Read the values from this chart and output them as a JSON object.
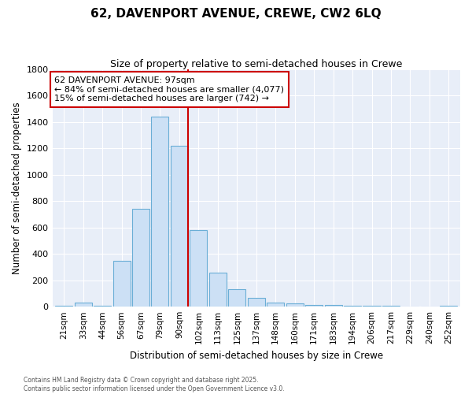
{
  "title": "62, DAVENPORT AVENUE, CREWE, CW2 6LQ",
  "subtitle": "Size of property relative to semi-detached houses in Crewe",
  "xlabel": "Distribution of semi-detached houses by size in Crewe",
  "ylabel": "Number of semi-detached properties",
  "categories": [
    "21sqm",
    "33sqm",
    "44sqm",
    "56sqm",
    "67sqm",
    "79sqm",
    "90sqm",
    "102sqm",
    "113sqm",
    "125sqm",
    "137sqm",
    "148sqm",
    "160sqm",
    "171sqm",
    "183sqm",
    "194sqm",
    "206sqm",
    "217sqm",
    "229sqm",
    "240sqm",
    "252sqm"
  ],
  "values": [
    10,
    30,
    10,
    345,
    740,
    1440,
    1220,
    580,
    260,
    130,
    65,
    30,
    25,
    15,
    15,
    10,
    5,
    5,
    3,
    3,
    10
  ],
  "bar_color": "#cce0f5",
  "bar_edge_color": "#6aaed6",
  "vline_color": "#cc0000",
  "vline_x_index": 6.45,
  "annotation_line1": "62 DAVENPORT AVENUE: 97sqm",
  "annotation_line2": "← 84% of semi-detached houses are smaller (4,077)",
  "annotation_line3": "15% of semi-detached houses are larger (742) →",
  "annotation_box_color": "white",
  "annotation_box_edge": "#cc0000",
  "ylim": [
    0,
    1800
  ],
  "yticks": [
    0,
    200,
    400,
    600,
    800,
    1000,
    1200,
    1400,
    1600,
    1800
  ],
  "plot_bg_color": "#e8eef8",
  "fig_bg_color": "#ffffff",
  "grid_color": "#ffffff",
  "footer_line1": "Contains HM Land Registry data © Crown copyright and database right 2025.",
  "footer_line2": "Contains public sector information licensed under the Open Government Licence v3.0."
}
